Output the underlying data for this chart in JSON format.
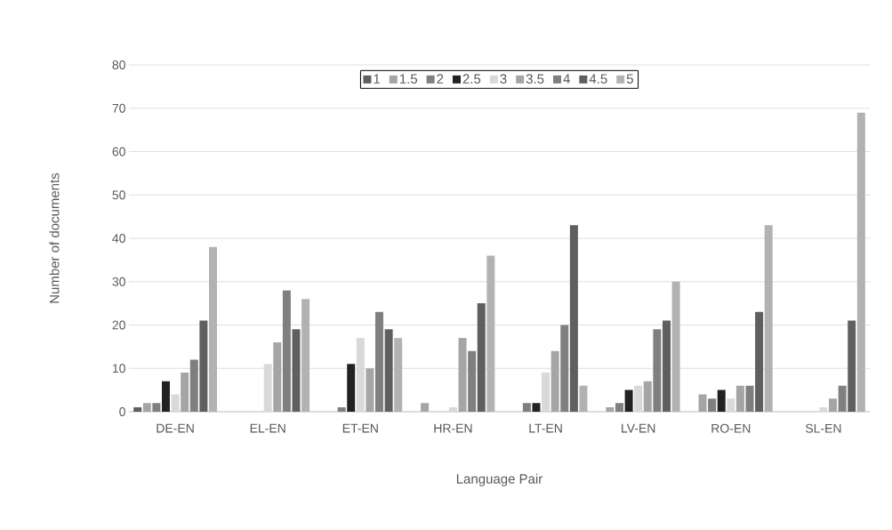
{
  "chart_data": {
    "type": "bar",
    "xlabel": "Language Pair",
    "ylabel": "Number of documents",
    "categories": [
      "DE-EN",
      "EL-EN",
      "ET-EN",
      "HR-EN",
      "LT-EN",
      "LV-EN",
      "RO-EN",
      "SL-EN"
    ],
    "series": [
      {
        "name": "1",
        "color": "#5f5f5f",
        "values": [
          1,
          0,
          0,
          0,
          0,
          0,
          0,
          0
        ]
      },
      {
        "name": "1.5",
        "color": "#a5a5a5",
        "values": [
          2,
          0,
          0,
          2,
          0,
          1,
          4,
          0
        ]
      },
      {
        "name": "2",
        "color": "#7f7f7f",
        "values": [
          2,
          0,
          1,
          0,
          2,
          2,
          3,
          0
        ]
      },
      {
        "name": "2.5",
        "color": "#222222",
        "values": [
          7,
          0,
          11,
          0,
          2,
          5,
          5,
          0
        ]
      },
      {
        "name": "3",
        "color": "#d9d9d9",
        "values": [
          4,
          11,
          17,
          1,
          9,
          6,
          3,
          1
        ]
      },
      {
        "name": "3.5",
        "color": "#a5a5a5",
        "values": [
          9,
          16,
          10,
          17,
          14,
          7,
          6,
          3
        ]
      },
      {
        "name": "4",
        "color": "#7f7f7f",
        "values": [
          12,
          28,
          23,
          14,
          20,
          19,
          6,
          6
        ]
      },
      {
        "name": "4.5",
        "color": "#5f5f5f",
        "values": [
          21,
          19,
          19,
          25,
          43,
          21,
          23,
          21
        ]
      },
      {
        "name": "5",
        "color": "#b2b2b2",
        "values": [
          38,
          26,
          17,
          36,
          6,
          30,
          43,
          69
        ]
      }
    ],
    "ylim": [
      0,
      80
    ],
    "yticks": [
      0,
      10,
      20,
      30,
      40,
      50,
      60,
      70,
      80
    ],
    "grid": "y",
    "legend": "top"
  }
}
